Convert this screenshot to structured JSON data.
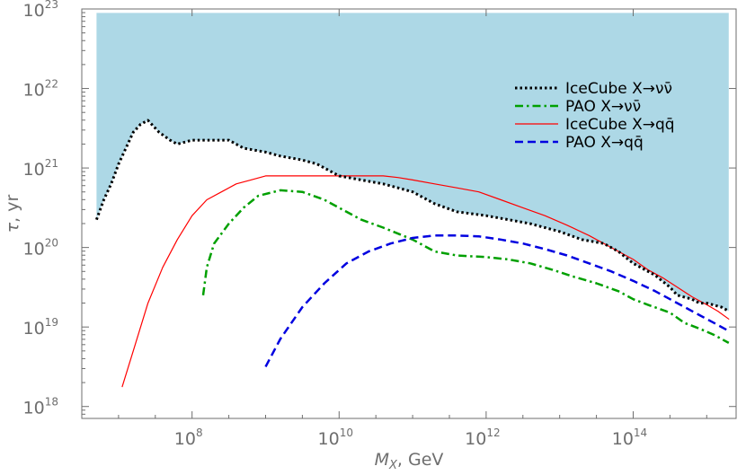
{
  "chart_data": {
    "type": "line",
    "title": "",
    "xlabel_main": "M",
    "xlabel_sub": "X",
    "xlabel_suffix": ", GeV",
    "ylabel_main": "τ",
    "ylabel_suffix": ", yr",
    "x_scale": "log10",
    "y_scale": "log10",
    "xlim_log10": [
      6.5,
      15.4
    ],
    "ylim_log10": [
      17.85,
      23
    ],
    "x_ticks": [
      {
        "base": "10",
        "exp": "8",
        "log": 8
      },
      {
        "base": "10",
        "exp": "10",
        "log": 10
      },
      {
        "base": "10",
        "exp": "12",
        "log": 12
      },
      {
        "base": "10",
        "exp": "14",
        "log": 14
      }
    ],
    "y_ticks": [
      {
        "base": "10",
        "exp": "18",
        "log": 18
      },
      {
        "base": "10",
        "exp": "19",
        "log": 19
      },
      {
        "base": "10",
        "exp": "20",
        "log": 20
      },
      {
        "base": "10",
        "exp": "21",
        "log": 21
      },
      {
        "base": "10",
        "exp": "22",
        "log": 22
      },
      {
        "base": "10",
        "exp": "23",
        "log": 23
      }
    ],
    "excluded_region": {
      "color": "#add8e6",
      "upper_log10_tau": 22.95,
      "bound_series": "IceCube X→νν̄"
    },
    "legend_position": "top-right",
    "series": [
      {
        "name": "IceCube X→νν̄",
        "legend_label": "IceCube  X→νν̄",
        "color": "#000000",
        "dash": "dotted",
        "log10_x": [
          6.7,
          6.8,
          6.9,
          7.0,
          7.1,
          7.2,
          7.3,
          7.4,
          7.55,
          7.7,
          7.8,
          8.0,
          8.2,
          8.3,
          8.5,
          8.7,
          9.0,
          9.2,
          9.5,
          9.7,
          10.0,
          10.3,
          10.6,
          10.8,
          11.0,
          11.3,
          11.6,
          12.0,
          12.3,
          12.6,
          12.8,
          13.0,
          13.3,
          13.6,
          13.8,
          14.0,
          14.3,
          14.5,
          14.6,
          14.8,
          14.9,
          15.0,
          15.2,
          15.3
        ],
        "log10_tau": [
          20.35,
          20.6,
          20.8,
          21.05,
          21.25,
          21.45,
          21.55,
          21.6,
          21.45,
          21.35,
          21.3,
          21.35,
          21.35,
          21.35,
          21.35,
          21.25,
          21.2,
          21.15,
          21.1,
          21.05,
          20.9,
          20.85,
          20.8,
          20.75,
          20.7,
          20.55,
          20.45,
          20.4,
          20.35,
          20.3,
          20.25,
          20.2,
          20.1,
          20.05,
          19.95,
          19.8,
          19.65,
          19.5,
          19.4,
          19.35,
          19.3,
          19.3,
          19.25,
          19.2
        ]
      },
      {
        "name": "PAO X→νν̄",
        "legend_label": "PAO  X→νν̄",
        "color": "#00a000",
        "dash": "dashdot",
        "log10_x": [
          8.15,
          8.2,
          8.3,
          8.5,
          8.7,
          8.9,
          9.2,
          9.5,
          9.8,
          10.0,
          10.3,
          10.6,
          11.0,
          11.3,
          11.6,
          12.0,
          12.3,
          12.6,
          12.9,
          13.2,
          13.5,
          13.8,
          14.0,
          14.2,
          14.5,
          14.7,
          14.9,
          15.1,
          15.3
        ],
        "log10_tau": [
          19.4,
          19.75,
          20.05,
          20.3,
          20.5,
          20.65,
          20.72,
          20.7,
          20.6,
          20.5,
          20.35,
          20.25,
          20.1,
          19.95,
          19.9,
          19.88,
          19.85,
          19.8,
          19.72,
          19.63,
          19.55,
          19.45,
          19.35,
          19.28,
          19.18,
          19.05,
          18.98,
          18.9,
          18.8
        ]
      },
      {
        "name": "IceCube X→qq̄",
        "legend_label": "IceCube  X→qq̄",
        "color": "#ff0000",
        "dash": "solid",
        "log10_x": [
          7.05,
          7.2,
          7.4,
          7.6,
          7.8,
          8.0,
          8.2,
          8.4,
          8.6,
          8.8,
          9.0,
          9.2,
          9.4,
          9.6,
          9.8,
          10.0,
          10.2,
          10.4,
          10.6,
          10.8,
          11.0,
          11.3,
          11.6,
          11.9,
          12.2,
          12.5,
          12.8,
          13.1,
          13.4,
          13.7,
          14.0,
          14.2,
          14.4,
          14.6,
          14.8,
          15.0,
          15.15,
          15.3
        ],
        "log10_tau": [
          18.25,
          18.7,
          19.3,
          19.75,
          20.1,
          20.4,
          20.6,
          20.7,
          20.8,
          20.85,
          20.9,
          20.9,
          20.9,
          20.9,
          20.9,
          20.9,
          20.9,
          20.9,
          20.9,
          20.88,
          20.85,
          20.8,
          20.75,
          20.7,
          20.6,
          20.5,
          20.4,
          20.28,
          20.15,
          20.0,
          19.85,
          19.72,
          19.62,
          19.5,
          19.38,
          19.28,
          19.2,
          19.1
        ]
      },
      {
        "name": "PAO X→qq̄",
        "legend_label": "PAO  X→qq̄",
        "color": "#0000e0",
        "dash": "dashed",
        "log10_x": [
          9.0,
          9.2,
          9.5,
          9.8,
          10.1,
          10.4,
          10.7,
          11.0,
          11.3,
          11.6,
          11.9,
          12.2,
          12.5,
          12.8,
          13.1,
          13.4,
          13.7,
          14.0,
          14.3,
          14.6,
          14.9,
          15.1,
          15.3
        ],
        "log10_tau": [
          18.5,
          18.85,
          19.25,
          19.55,
          19.8,
          19.95,
          20.05,
          20.12,
          20.15,
          20.15,
          20.14,
          20.1,
          20.05,
          19.98,
          19.9,
          19.8,
          19.7,
          19.58,
          19.45,
          19.3,
          19.15,
          19.05,
          18.95
        ]
      }
    ]
  }
}
